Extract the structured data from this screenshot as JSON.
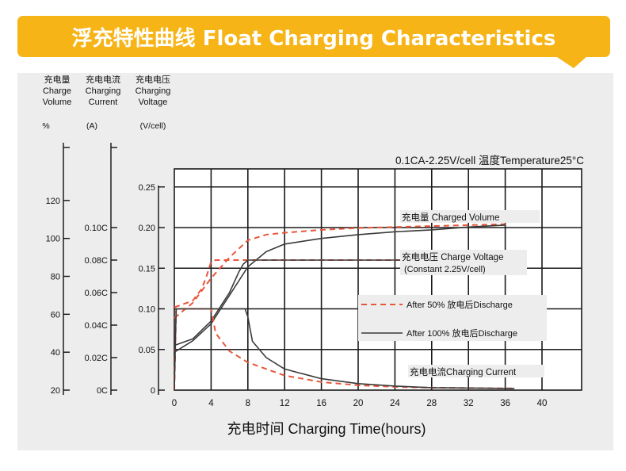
{
  "banner": {
    "title": "浮充特性曲线 Float Charging Characteristics",
    "color": "#f6b417"
  },
  "colors": {
    "panel": "#ededed",
    "grid": "#1a1a1a",
    "dashed": "#e8563a",
    "solid": "#3a3a3a",
    "text": "#111111"
  },
  "chart_data": {
    "type": "line",
    "condition_label": "0.1CA-2.25V/cell  温度Temperature25°C",
    "xlabel": "充电时间 Charging Time(hours)",
    "xlim": [
      0,
      40
    ],
    "x_ticks": [
      "0",
      "4",
      "8",
      "12",
      "16",
      "20",
      "24",
      "28",
      "32",
      "36",
      "40"
    ],
    "axes": [
      {
        "id": "volume",
        "label_lines": [
          "充电量",
          "Charge",
          "Volume"
        ],
        "unit": "%",
        "range": [
          20,
          140
        ],
        "ticks": [
          "20",
          "40",
          "60",
          "80",
          "100",
          "120"
        ]
      },
      {
        "id": "current",
        "label_lines": [
          "充电电流",
          "Charging",
          "Current"
        ],
        "unit": "(A)",
        "range": [
          0,
          0.14
        ],
        "ticks": [
          "0C",
          "0.02C",
          "0.04C",
          "0.06C",
          "0.08C",
          "0.10C"
        ]
      },
      {
        "id": "voltage",
        "label_lines": [
          "充电电压",
          "Charging",
          "Voltage"
        ],
        "unit": "(V/cell)",
        "range": [
          0,
          0.28
        ],
        "ticks": [
          "0",
          "0.05",
          "0.10",
          "0.15",
          "0.20",
          "0.25"
        ]
      }
    ],
    "legend": {
      "dashed": "After 50% 放电后Discharge",
      "solid": "After 100% 放电后Discharge"
    },
    "curve_labels": {
      "volume": "充电量 Charged Volume",
      "voltage_line1": "充电电压 Charge Voltage",
      "voltage_line2": "(Constant 2.25V/cell)",
      "current": "充电电流Charging Current"
    },
    "series": [
      {
        "name": "After 50% 放电后Discharge",
        "style": "dashed",
        "quantity": "volume",
        "x": [
          0,
          2,
          4,
          6,
          8,
          10,
          12,
          16,
          20,
          24,
          28,
          32,
          36
        ],
        "y": [
          58,
          66,
          79,
          90,
          99,
          102,
          103,
          104.5,
          105.5,
          106,
          106.5,
          107,
          107.5
        ]
      },
      {
        "name": "After 100% 放电后Discharge",
        "style": "solid",
        "quantity": "volume",
        "x": [
          0,
          2,
          4,
          6,
          8,
          10,
          12,
          16,
          20,
          24,
          28,
          32,
          36
        ],
        "y": [
          40,
          46,
          55,
          70,
          85,
          93,
          97,
          100,
          102,
          103.5,
          104.5,
          106,
          107
        ]
      },
      {
        "name": "After 50% 放电后Discharge",
        "style": "dashed",
        "quantity": "voltage",
        "x": [
          0,
          1,
          2,
          3,
          3.5,
          4,
          4.5,
          5,
          8,
          37
        ],
        "y": [
          0.102,
          0.106,
          0.11,
          0.125,
          0.14,
          0.158,
          0.16,
          0.16,
          0.16,
          0.16
        ]
      },
      {
        "name": "After 100% 放电后Discharge",
        "style": "solid",
        "quantity": "voltage",
        "x": [
          0,
          2,
          4,
          6,
          7,
          7.5,
          8,
          37
        ],
        "y": [
          0.055,
          0.063,
          0.085,
          0.12,
          0.145,
          0.155,
          0.16,
          0.16
        ]
      },
      {
        "name": "After 50% 放电后Discharge",
        "style": "dashed",
        "quantity": "current",
        "x": [
          0,
          0.2,
          4,
          4.5,
          6,
          8,
          12,
          16,
          20,
          24,
          28,
          37
        ],
        "y": [
          0,
          0.05,
          0.05,
          0.035,
          0.024,
          0.017,
          0.009,
          0.005,
          0.003,
          0.002,
          0.0015,
          0.001
        ]
      },
      {
        "name": "After 100% 放电后Discharge",
        "style": "solid",
        "quantity": "current",
        "x": [
          0,
          0.2,
          7.7,
          8,
          8.5,
          10,
          12,
          16,
          20,
          24,
          28,
          37
        ],
        "y": [
          0,
          0.05,
          0.05,
          0.045,
          0.03,
          0.02,
          0.013,
          0.007,
          0.004,
          0.0025,
          0.0015,
          0.001
        ]
      }
    ]
  }
}
